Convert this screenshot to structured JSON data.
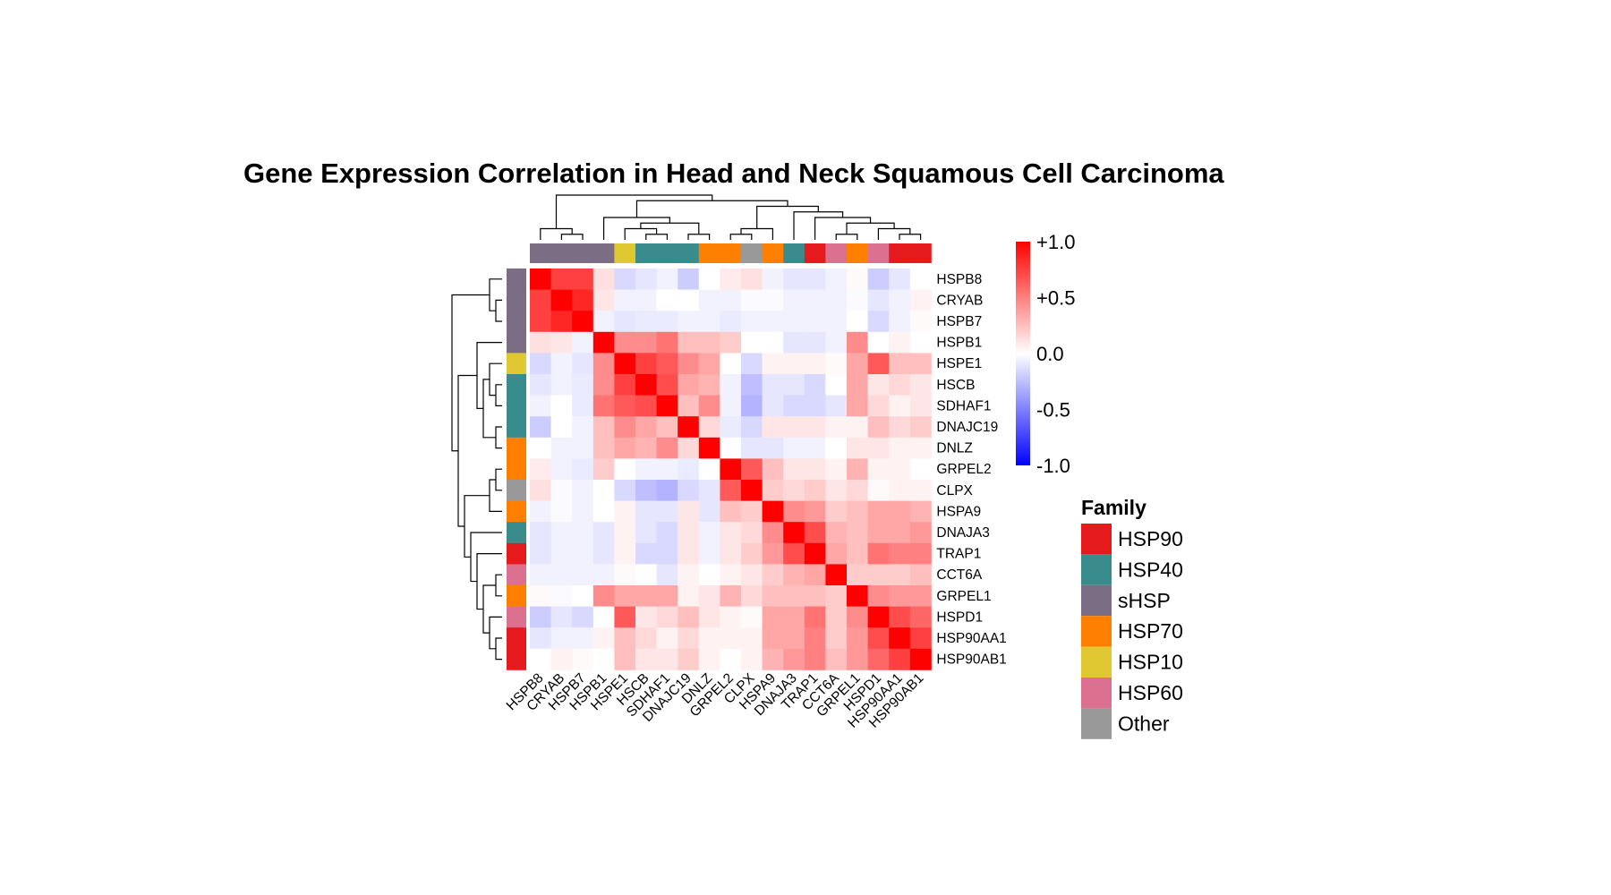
{
  "chart_data": {
    "type": "heatmap",
    "title": "Gene Expression Correlation in Head and Neck Squamous Cell Carcinoma",
    "genes": [
      "HSPB8",
      "CRYAB",
      "HSPB7",
      "HSPB1",
      "HSPE1",
      "HSCB",
      "SDHAF1",
      "DNAJC19",
      "DNLZ",
      "GRPEL2",
      "CLPX",
      "HSPA9",
      "DNAJA3",
      "TRAP1",
      "CCT6A",
      "GRPEL1",
      "HSPD1",
      "HSP90AA1",
      "HSP90AB1"
    ],
    "gene_family": [
      "sHSP",
      "sHSP",
      "sHSP",
      "sHSP",
      "HSP10",
      "HSP40",
      "HSP40",
      "HSP40",
      "HSP70",
      "HSP70",
      "Other",
      "HSP70",
      "HSP40",
      "HSP90",
      "HSP60",
      "HSP70",
      "HSP60",
      "HSP90",
      "HSP90"
    ],
    "matrix": [
      [
        1.0,
        0.75,
        0.75,
        0.12,
        -0.15,
        -0.1,
        -0.05,
        -0.2,
        0.0,
        0.08,
        0.12,
        -0.05,
        -0.1,
        -0.1,
        -0.05,
        0.02,
        -0.2,
        -0.1,
        0.0
      ],
      [
        0.75,
        1.0,
        0.85,
        0.1,
        -0.05,
        -0.05,
        0.0,
        0.0,
        -0.05,
        -0.05,
        -0.02,
        -0.02,
        -0.05,
        -0.05,
        -0.05,
        -0.02,
        -0.1,
        -0.05,
        0.05
      ],
      [
        0.75,
        0.85,
        1.0,
        -0.05,
        -0.1,
        -0.08,
        -0.08,
        -0.05,
        -0.05,
        -0.08,
        -0.05,
        -0.05,
        -0.05,
        -0.05,
        -0.05,
        0.0,
        -0.15,
        -0.05,
        0.02
      ],
      [
        0.12,
        0.1,
        -0.05,
        1.0,
        0.45,
        0.45,
        0.55,
        0.25,
        0.25,
        0.2,
        0.0,
        0.0,
        -0.1,
        -0.1,
        -0.05,
        0.45,
        0.0,
        0.05,
        0.0
      ],
      [
        -0.15,
        -0.05,
        -0.1,
        0.45,
        1.0,
        0.75,
        0.65,
        0.45,
        0.35,
        0.0,
        -0.15,
        0.05,
        0.05,
        0.05,
        0.02,
        0.35,
        0.65,
        0.25,
        0.25
      ],
      [
        -0.1,
        -0.05,
        -0.08,
        0.45,
        0.75,
        1.0,
        0.7,
        0.35,
        0.3,
        -0.05,
        -0.25,
        -0.1,
        -0.1,
        -0.15,
        0.0,
        0.35,
        0.1,
        0.15,
        0.1
      ],
      [
        -0.05,
        0.0,
        -0.08,
        0.55,
        0.65,
        0.7,
        1.0,
        0.25,
        0.45,
        -0.05,
        -0.3,
        -0.1,
        -0.15,
        -0.15,
        -0.1,
        0.35,
        0.15,
        0.05,
        0.1
      ],
      [
        -0.2,
        0.0,
        -0.05,
        0.25,
        0.45,
        0.35,
        0.25,
        1.0,
        0.15,
        -0.08,
        -0.15,
        0.1,
        0.1,
        0.1,
        0.05,
        0.05,
        0.25,
        0.15,
        0.2
      ],
      [
        0.0,
        -0.05,
        -0.05,
        0.25,
        0.35,
        0.3,
        0.45,
        0.15,
        1.0,
        0.0,
        -0.1,
        -0.1,
        -0.05,
        -0.05,
        0.0,
        0.1,
        0.1,
        0.05,
        0.05
      ],
      [
        0.08,
        -0.05,
        -0.08,
        0.2,
        0.0,
        -0.05,
        -0.05,
        -0.08,
        0.0,
        1.0,
        0.65,
        0.25,
        0.1,
        0.1,
        0.05,
        0.3,
        0.05,
        0.05,
        0.0
      ],
      [
        0.12,
        -0.02,
        -0.05,
        0.0,
        -0.15,
        -0.25,
        -0.3,
        -0.15,
        -0.1,
        0.65,
        1.0,
        0.2,
        0.15,
        0.2,
        0.1,
        0.15,
        0.02,
        0.05,
        0.05
      ],
      [
        -0.05,
        -0.02,
        -0.05,
        0.0,
        0.05,
        -0.1,
        -0.1,
        0.1,
        -0.1,
        0.25,
        0.2,
        1.0,
        0.45,
        0.4,
        0.2,
        0.25,
        0.35,
        0.35,
        0.3
      ],
      [
        -0.1,
        -0.05,
        -0.05,
        -0.1,
        0.05,
        -0.1,
        -0.15,
        0.1,
        -0.05,
        0.1,
        0.15,
        0.45,
        1.0,
        0.7,
        0.3,
        0.25,
        0.35,
        0.35,
        0.4
      ],
      [
        -0.1,
        -0.05,
        -0.05,
        -0.1,
        0.05,
        -0.15,
        -0.15,
        0.1,
        -0.05,
        0.1,
        0.2,
        0.4,
        0.7,
        1.0,
        0.35,
        0.25,
        0.55,
        0.5,
        0.5
      ],
      [
        -0.05,
        -0.05,
        -0.05,
        -0.05,
        0.02,
        0.0,
        -0.1,
        0.05,
        0.0,
        0.05,
        0.1,
        0.2,
        0.3,
        0.35,
        1.0,
        0.2,
        0.2,
        0.2,
        0.25
      ],
      [
        0.02,
        -0.02,
        0.0,
        0.45,
        0.35,
        0.35,
        0.35,
        0.05,
        0.1,
        0.3,
        0.15,
        0.25,
        0.25,
        0.25,
        0.2,
        1.0,
        0.45,
        0.4,
        0.4
      ],
      [
        -0.2,
        -0.1,
        -0.15,
        0.0,
        0.65,
        0.1,
        0.15,
        0.25,
        0.1,
        0.05,
        0.02,
        0.35,
        0.35,
        0.55,
        0.2,
        0.45,
        1.0,
        0.7,
        0.6
      ],
      [
        -0.1,
        -0.05,
        -0.05,
        0.05,
        0.25,
        0.15,
        0.05,
        0.15,
        0.05,
        0.05,
        0.05,
        0.35,
        0.35,
        0.5,
        0.2,
        0.4,
        0.7,
        1.0,
        0.75
      ],
      [
        0.0,
        0.05,
        0.02,
        0.0,
        0.25,
        0.1,
        0.1,
        0.2,
        0.05,
        0.0,
        0.05,
        0.3,
        0.4,
        0.5,
        0.25,
        0.4,
        0.6,
        0.75,
        1.0
      ]
    ],
    "colorbar": {
      "range": [
        -1.0,
        1.0
      ],
      "ticks": [
        "+1.0",
        "+0.5",
        "0.0",
        "-0.5",
        "-1.0"
      ],
      "tick_values": [
        1.0,
        0.5,
        0.0,
        -0.5,
        -1.0
      ],
      "low_color": "#0000ff",
      "mid_color": "#ffffff",
      "high_color": "#ff0000"
    },
    "legend": {
      "title": "Family",
      "items": [
        {
          "name": "HSP90",
          "color": "#e41a1c"
        },
        {
          "name": "HSP40",
          "color": "#3a8c8c"
        },
        {
          "name": "sHSP",
          "color": "#7b6d84"
        },
        {
          "name": "HSP70",
          "color": "#ff8000"
        },
        {
          "name": "HSP10",
          "color": "#e0c832"
        },
        {
          "name": "HSP60",
          "color": "#dc7090"
        },
        {
          "name": "Other",
          "color": "#999999"
        }
      ]
    }
  }
}
